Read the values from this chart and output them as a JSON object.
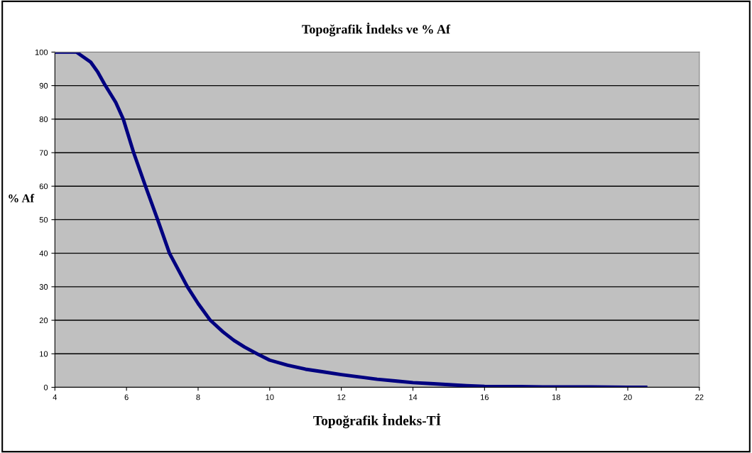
{
  "chart_data": {
    "type": "line",
    "title": "Topoğrafik İndeks ve % Af",
    "xlabel": "Topoğrafik İndeks-Tİ",
    "ylabel": "% Af",
    "x": [
      4,
      4.3,
      4.6,
      5,
      5.2,
      5.41,
      5.7,
      5.91,
      6.2,
      6.53,
      6.87,
      7.2,
      7.7,
      8,
      8.34,
      8.7,
      9,
      9.3,
      9.65,
      10,
      10.5,
      11,
      11.5,
      12,
      12.5,
      13,
      13.5,
      14,
      14.5,
      15,
      15.5,
      16,
      17,
      18,
      19,
      20,
      20.5
    ],
    "series": [
      {
        "color": "#000080",
        "values": [
          100,
          100,
          100,
          97,
          94,
          90,
          85,
          80,
          70,
          60,
          50,
          40,
          30,
          25,
          20,
          16.5,
          14,
          12,
          10,
          8.1,
          6.6,
          5.4,
          4.6,
          3.8,
          3.1,
          2.4,
          1.9,
          1.4,
          1.1,
          0.8,
          0.5,
          0.3,
          0.2,
          0.1,
          0.1,
          0,
          0
        ]
      }
    ],
    "xlim": [
      4,
      22
    ],
    "xticks": [
      4,
      6,
      8,
      10,
      12,
      14,
      16,
      18,
      20,
      22
    ],
    "ylim": [
      0,
      100
    ],
    "yticks": [
      0,
      10,
      20,
      30,
      40,
      50,
      60,
      70,
      80,
      90,
      100
    ],
    "grid": "y",
    "legend": false,
    "marker": "none",
    "line_style": "solid"
  }
}
